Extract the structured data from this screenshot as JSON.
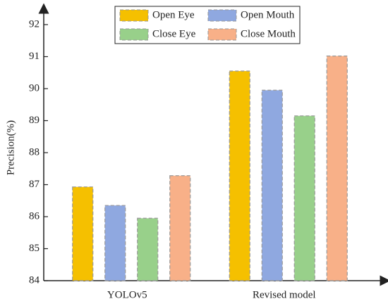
{
  "chart_data": {
    "type": "bar",
    "y_label": "Precision(%)",
    "categories": [
      "YOLOv5",
      "Revised model"
    ],
    "series": [
      {
        "name": "Open Eye",
        "color": "#f5c000",
        "values": [
          86.93,
          90.55
        ]
      },
      {
        "name": "Open Mouth",
        "color": "#8fa8e0",
        "values": [
          86.35,
          89.95
        ]
      },
      {
        "name": "Close Eye",
        "color": "#98d08a",
        "values": [
          85.95,
          89.15
        ]
      },
      {
        "name": "Close Mouth",
        "color": "#f8b088",
        "values": [
          87.28,
          91.02
        ]
      }
    ],
    "ylim": [
      84,
      92.4
    ],
    "yticks": [
      84,
      85,
      86,
      87,
      88,
      89,
      90,
      91,
      92
    ],
    "grid": false,
    "legend": "top"
  }
}
